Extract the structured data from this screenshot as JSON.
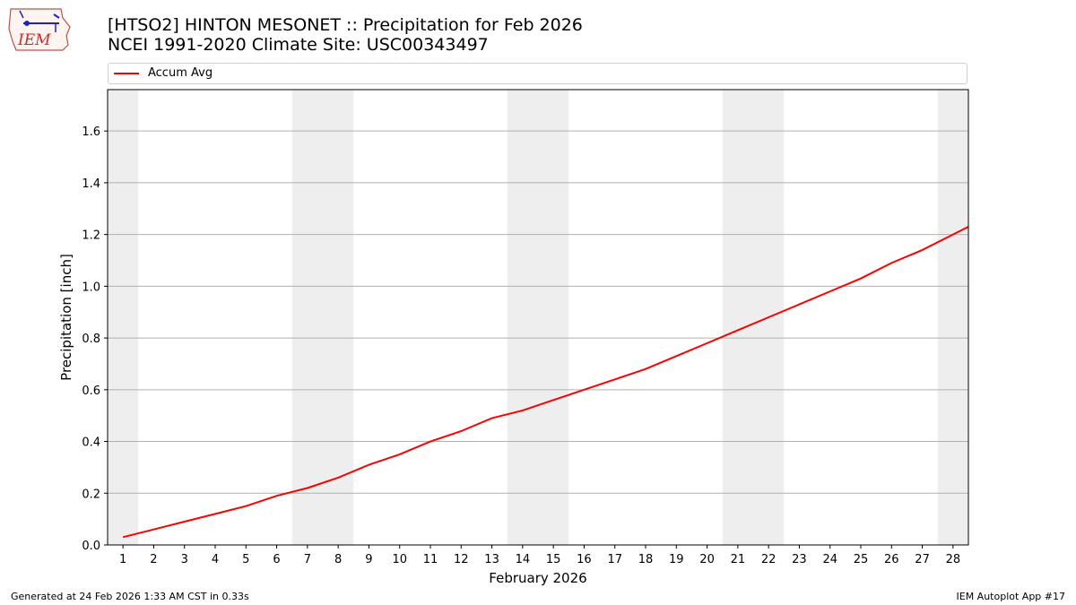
{
  "header": {
    "title_line1": "[HTSO2] HINTON MESONET :: Precipitation for Feb 2026",
    "title_line2": "NCEI 1991-2020 Climate Site: USC00343497"
  },
  "logo": {
    "text": "IEM"
  },
  "legend": {
    "entries": [
      {
        "label": "Accum Avg",
        "color": "#ff0000"
      }
    ]
  },
  "chart_data": {
    "type": "line",
    "title": "[HTSO2] HINTON MESONET :: Precipitation for Feb 2026",
    "subtitle": "NCEI 1991-2020 Climate Site: USC00343497",
    "xlabel": "February 2026",
    "ylabel": "Precipitation [inch]",
    "x": [
      1,
      2,
      3,
      4,
      5,
      6,
      7,
      8,
      9,
      10,
      11,
      12,
      13,
      14,
      15,
      16,
      17,
      18,
      19,
      20,
      21,
      22,
      23,
      24,
      25,
      26,
      27,
      28
    ],
    "x_extent": [
      0.5,
      28.5
    ],
    "ylim": [
      0,
      1.76
    ],
    "yticks": [
      0.0,
      0.2,
      0.4,
      0.6,
      0.8,
      1.0,
      1.2,
      1.4,
      1.6
    ],
    "ytick_labels": [
      "0.0",
      "0.2",
      "0.4",
      "0.6",
      "0.8",
      "1.0",
      "1.2",
      "1.4",
      "1.6"
    ],
    "grid": "horizontal",
    "weekend_shading": [
      [
        0.5,
        1.5
      ],
      [
        6.5,
        8.5
      ],
      [
        13.5,
        15.5
      ],
      [
        20.5,
        22.5
      ],
      [
        27.5,
        28.5
      ]
    ],
    "shading_color": "#eeeeee",
    "series": [
      {
        "name": "Accum Avg",
        "color": "#ff0000",
        "values": [
          0.03,
          0.06,
          0.09,
          0.12,
          0.15,
          0.19,
          0.22,
          0.26,
          0.31,
          0.35,
          0.4,
          0.44,
          0.49,
          0.52,
          0.56,
          0.6,
          0.64,
          0.68,
          0.73,
          0.78,
          0.83,
          0.88,
          0.93,
          0.98,
          1.03,
          1.09,
          1.14,
          1.2
        ],
        "end_value_at_x_extent": 1.23
      }
    ]
  },
  "footer": {
    "left": "Generated at 24 Feb 2026 1:33 AM CST in 0.33s",
    "right": "IEM Autoplot App #17"
  }
}
